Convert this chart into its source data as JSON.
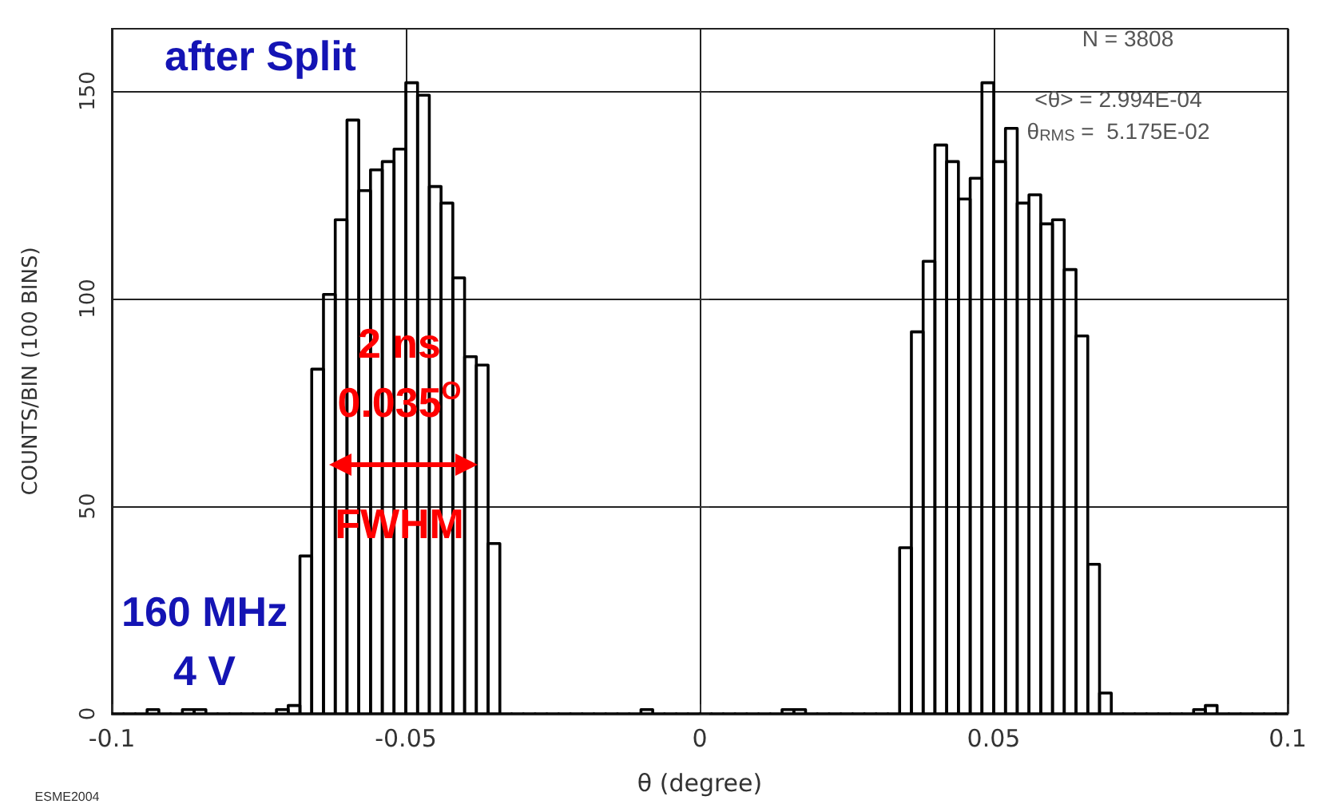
{
  "chart_data": {
    "type": "histogram",
    "xlabel": "θ (degree)",
    "ylabel": "COUNTS/BIN (100 BINS)",
    "bins": [
      -0.1,
      -0.098,
      -0.096,
      -0.094,
      -0.092,
      -0.09,
      -0.088,
      -0.086,
      -0.084,
      -0.082,
      -0.08,
      -0.078,
      -0.076,
      -0.074,
      -0.072,
      -0.07,
      -0.068,
      -0.066,
      -0.064,
      -0.062,
      -0.06,
      -0.058,
      -0.056,
      -0.054,
      -0.052,
      -0.05,
      -0.048,
      -0.046,
      -0.044,
      -0.042,
      -0.04,
      -0.038,
      -0.036,
      -0.034,
      -0.032,
      -0.03,
      -0.028,
      -0.026,
      -0.024,
      -0.022,
      -0.02,
      -0.018,
      -0.016,
      -0.014,
      -0.012,
      -0.01,
      -0.008,
      -0.006,
      -0.004,
      -0.002,
      0,
      0.002,
      0.004,
      0.006,
      0.008,
      0.01,
      0.012,
      0.014,
      0.016,
      0.018,
      0.02,
      0.022,
      0.024,
      0.026,
      0.028,
      0.03,
      0.032,
      0.034,
      0.036,
      0.038,
      0.04,
      0.042,
      0.044,
      0.046,
      0.048,
      0.05,
      0.052,
      0.054,
      0.056,
      0.058,
      0.06,
      0.062,
      0.064,
      0.066,
      0.068,
      0.07,
      0.072,
      0.074,
      0.076,
      0.078,
      0.08,
      0.082,
      0.084,
      0.086,
      0.088,
      0.09,
      0.092,
      0.094,
      0.096,
      0.098,
      0.1
    ],
    "values": [
      0,
      0,
      0,
      1,
      0,
      0,
      1,
      1,
      0,
      0,
      0,
      0,
      0,
      0,
      1,
      2,
      38,
      83,
      101,
      119,
      143,
      126,
      131,
      133,
      136,
      152,
      149,
      127,
      123,
      105,
      86,
      84,
      41,
      0,
      0,
      0,
      0,
      0,
      0,
      0,
      0,
      0,
      0,
      0,
      0,
      1,
      0,
      0,
      0,
      0,
      0,
      0,
      0,
      0,
      0,
      0,
      0,
      1,
      1,
      0,
      0,
      0,
      0,
      0,
      0,
      0,
      0,
      40,
      92,
      109,
      137,
      133,
      124,
      129,
      152,
      133,
      141,
      123,
      125,
      118,
      119,
      107,
      91,
      36,
      5,
      0,
      0,
      0,
      0,
      0,
      0,
      0,
      1,
      2,
      0,
      0,
      0,
      0,
      0,
      0
    ],
    "color": "#000000",
    "xlim": [
      -0.1,
      0.1
    ],
    "xticks": [
      -0.1,
      -0.05,
      0,
      0.05,
      0.1
    ],
    "ylim": [
      0,
      165
    ],
    "yticks": [
      0,
      50,
      100,
      150
    ],
    "grid": true,
    "annotations": [
      "after Split",
      "2 ns",
      "0.035$^{O}$",
      "FWHM",
      "160 MHz",
      "4 V",
      "N = 3808",
      "<θ> = 2.994E-04",
      "θ$_{RMS}$ =  5.175E-02",
      "ESME2004"
    ]
  }
}
